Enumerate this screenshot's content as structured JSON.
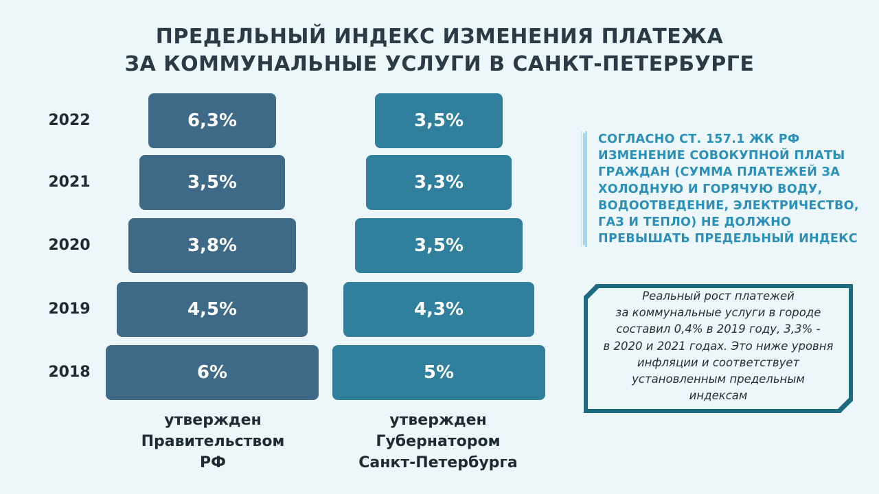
{
  "title": {
    "line1": "ПРЕДЕЛЬНЫЙ ИНДЕКС ИЗМЕНЕНИЯ ПЛАТЕЖА",
    "line2": "ЗА КОММУНАЛЬНЫЕ УСЛУГИ В САНКТ-ПЕТЕРБУРГЕ"
  },
  "chart_data": {
    "type": "bar",
    "categories": [
      "2022",
      "2021",
      "2020",
      "2019",
      "2018"
    ],
    "series": [
      {
        "name": "утвержден Правительством РФ",
        "values": [
          6.3,
          3.5,
          3.8,
          4.5,
          6
        ],
        "labels": [
          "6,3%",
          "3,5%",
          "3,8%",
          "4,5%",
          "6%"
        ],
        "color": "#3f6a87"
      },
      {
        "name": "утвержден Губернатором Санкт-Петербурга",
        "values": [
          3.5,
          3.3,
          3.5,
          4.3,
          5
        ],
        "labels": [
          "3,5%",
          "3,3%",
          "3,5%",
          "4,3%",
          "5%"
        ],
        "color": "#2f7f9d"
      }
    ],
    "unit": "%"
  },
  "column_labels": {
    "gov": [
      "утвержден",
      "Правительством",
      "РФ"
    ],
    "spb": [
      "утвержден",
      "Губернатором",
      "Санкт-Петербурга"
    ]
  },
  "note": {
    "lines": [
      "СОГЛАСНО СТ. 157.1 ЖК РФ",
      "ИЗМЕНЕНИЕ СОВОКУПНОЙ ПЛАТЫ",
      "ГРАЖДАН (СУММА ПЛАТЕЖЕЙ ЗА",
      "ХОЛОДНУЮ И ГОРЯЧУЮ ВОДУ,",
      "ВОДООТВЕДЕНИЕ, ЭЛЕКТРИЧЕСТВО,",
      "ГАЗ И ТЕПЛО) НЕ ДОЛЖНО",
      "ПРЕВЫШАТЬ ПРЕДЕЛЬНЫЙ ИНДЕКС"
    ],
    "color": "#2a90b8"
  },
  "box": {
    "lines": [
      "Реальный рост платежей",
      "за коммунальные услуги в городе",
      "составил 0,4% в 2019 году, 3,3% -",
      "в 2020 и 2021 годах. Это ниже уровня",
      "инфляции и соответствует",
      "установленным предельным",
      "индексам"
    ],
    "border_color": "#1d6b80"
  }
}
